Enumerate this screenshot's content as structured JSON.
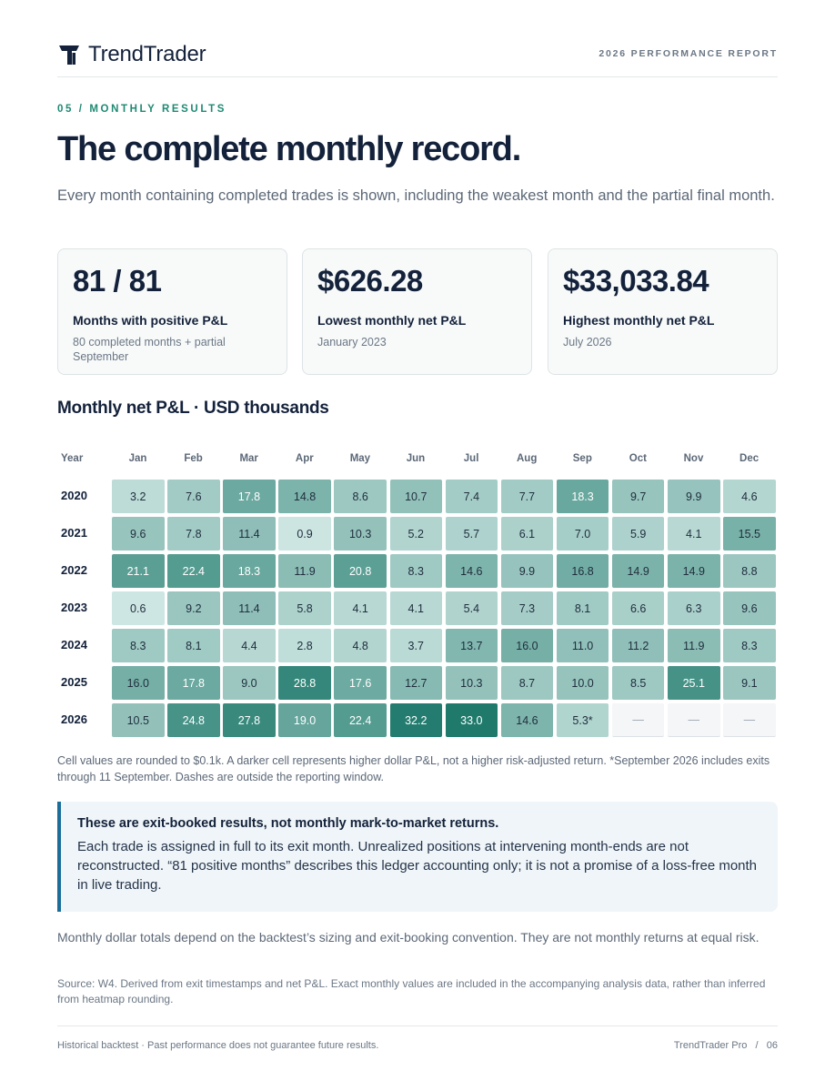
{
  "header": {
    "brand": "TrendTrader",
    "report_tag": "2026 PERFORMANCE REPORT",
    "logo_icon": "trendtrader-logo-icon"
  },
  "section_tag": "05 / MONTHLY RESULTS",
  "title": "The complete monthly record.",
  "subtitle": "Every month containing completed trades is shown, including the weakest month and the partial final month.",
  "kpis": [
    {
      "value": "81 / 81",
      "label": "Months with positive P&L",
      "detail": "80 completed months + partial September"
    },
    {
      "value": "$626.28",
      "label": "Lowest monthly net P&L",
      "detail": "January 2023"
    },
    {
      "value": "$33,033.84",
      "label": "Highest monthly net P&L",
      "detail": "July 2026"
    }
  ],
  "chart_data": {
    "type": "heatmap",
    "title": "Monthly net P&L · USD thousands",
    "corner_label": "Year",
    "x": [
      "Jan",
      "Feb",
      "Mar",
      "Apr",
      "May",
      "Jun",
      "Jul",
      "Aug",
      "Sep",
      "Oct",
      "Nov",
      "Dec"
    ],
    "y": [
      "2020",
      "2021",
      "2022",
      "2023",
      "2024",
      "2025",
      "2026"
    ],
    "values": [
      [
        3.2,
        7.6,
        17.8,
        14.8,
        8.6,
        10.7,
        7.4,
        7.7,
        18.3,
        9.7,
        9.9,
        4.6
      ],
      [
        9.6,
        7.8,
        11.4,
        0.9,
        10.3,
        5.2,
        5.7,
        6.1,
        7.0,
        5.9,
        4.1,
        15.5
      ],
      [
        21.1,
        22.4,
        18.3,
        11.9,
        20.8,
        8.3,
        14.6,
        9.9,
        16.8,
        14.9,
        14.9,
        8.8
      ],
      [
        0.6,
        9.2,
        11.4,
        5.8,
        4.1,
        4.1,
        5.4,
        7.3,
        8.1,
        6.6,
        6.3,
        9.6
      ],
      [
        8.3,
        8.1,
        4.4,
        2.8,
        4.8,
        3.7,
        13.7,
        16.0,
        11.0,
        11.2,
        11.9,
        8.3
      ],
      [
        16.0,
        17.8,
        9.0,
        28.8,
        17.6,
        12.7,
        10.3,
        8.7,
        10.0,
        8.5,
        25.1,
        9.1
      ],
      [
        10.5,
        24.8,
        27.8,
        19.0,
        22.4,
        32.2,
        33.0,
        14.6,
        5.3,
        null,
        null,
        null
      ]
    ],
    "cell_labels": [
      [
        "3.2",
        "7.6",
        "17.8",
        "14.8",
        "8.6",
        "10.7",
        "7.4",
        "7.7",
        "18.3",
        "9.7",
        "9.9",
        "4.6"
      ],
      [
        "9.6",
        "7.8",
        "11.4",
        "0.9",
        "10.3",
        "5.2",
        "5.7",
        "6.1",
        "7.0",
        "5.9",
        "4.1",
        "15.5"
      ],
      [
        "21.1",
        "22.4",
        "18.3",
        "11.9",
        "20.8",
        "8.3",
        "14.6",
        "9.9",
        "16.8",
        "14.9",
        "14.9",
        "8.8"
      ],
      [
        "0.6",
        "9.2",
        "11.4",
        "5.8",
        "4.1",
        "4.1",
        "5.4",
        "7.3",
        "8.1",
        "6.6",
        "6.3",
        "9.6"
      ],
      [
        "8.3",
        "8.1",
        "4.4",
        "2.8",
        "4.8",
        "3.7",
        "13.7",
        "16.0",
        "11.0",
        "11.2",
        "11.9",
        "8.3"
      ],
      [
        "16.0",
        "17.8",
        "9.0",
        "28.8",
        "17.6",
        "12.7",
        "10.3",
        "8.7",
        "10.0",
        "8.5",
        "25.1",
        "9.1"
      ],
      [
        "10.5",
        "24.8",
        "27.8",
        "19.0",
        "22.4",
        "32.2",
        "33.0",
        "14.6",
        "5.3*",
        "—",
        "—",
        "—"
      ]
    ],
    "color_low": "#d3e9e6",
    "color_high": "#1f7a6c",
    "empty_color": "#f4f6f8"
  },
  "heatmap_note": "Cell values are rounded to $0.1k. A darker cell represents higher dollar P&L, not a higher risk-adjusted return. *September 2026 includes exits through 11 September. Dashes are outside the reporting window.",
  "callout": {
    "heading": "These are exit-booked results, not monthly mark-to-market returns.",
    "body": "Each trade is assigned in full to its exit month. Unrealized positions at intervening month-ends are not reconstructed. “81 positive months” describes this ledger accounting only; it is not a promise of a loss-free month in live trading."
  },
  "paragraph": "Monthly dollar totals depend on the backtest’s sizing and exit-booking convention. They are not monthly returns at equal risk.",
  "source": "Source: W4. Derived from exit timestamps and net P&L. Exact monthly values are included in the accompanying analysis data, rather than inferred from heatmap rounding.",
  "footer": {
    "disclaimer": "Historical backtest · Past performance does not guarantee future results.",
    "page": "TrendTrader Pro   /   06"
  }
}
